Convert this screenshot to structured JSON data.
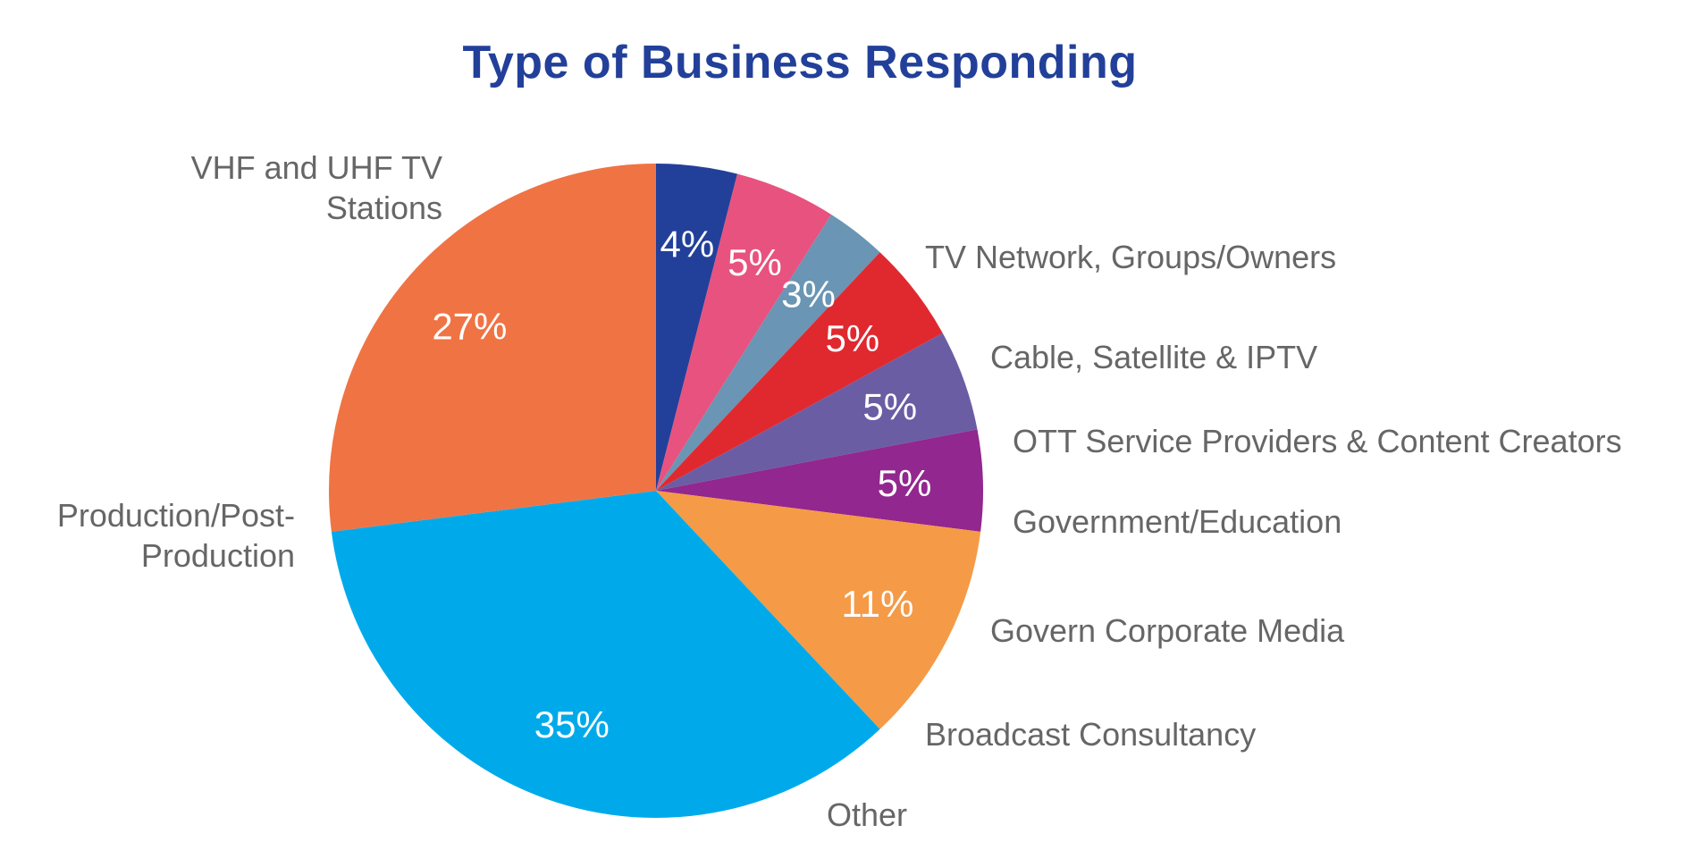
{
  "chart_data": {
    "type": "pie",
    "title": "Type of Business Responding",
    "title_color": "#22409A",
    "label_color": "#666666",
    "slices": [
      {
        "label": [
          "TV Network, Groups/Owners"
        ],
        "value": 4,
        "display": "4%",
        "color": "#22409A"
      },
      {
        "label": [
          "Cable, Satellite & IPTV"
        ],
        "value": 5,
        "display": "5%",
        "color": "#E8527E"
      },
      {
        "label": [
          "OTT Service Providers & Content Creators"
        ],
        "value": 3,
        "display": "3%",
        "color": "#6A95B4"
      },
      {
        "label": [
          "Government/Education"
        ],
        "value": 5,
        "display": "5%",
        "color": "#E0292F"
      },
      {
        "label": [
          "Govern Corporate Media"
        ],
        "value": 5,
        "display": "5%",
        "color": "#6A5DA4"
      },
      {
        "label": [
          "Broadcast Consultancy"
        ],
        "value": 5,
        "display": "5%",
        "color": "#92278F"
      },
      {
        "label": [
          "Other"
        ],
        "value": 11,
        "display": "11%",
        "color": "#F59A47"
      },
      {
        "label": [
          "Production/Post-",
          "Production"
        ],
        "value": 35,
        "display": "35%",
        "color": "#00AAEA"
      },
      {
        "label": [
          "VHF and UHF TV",
          "Stations"
        ],
        "value": 27,
        "display": "27%",
        "color": "#F07344"
      }
    ]
  }
}
